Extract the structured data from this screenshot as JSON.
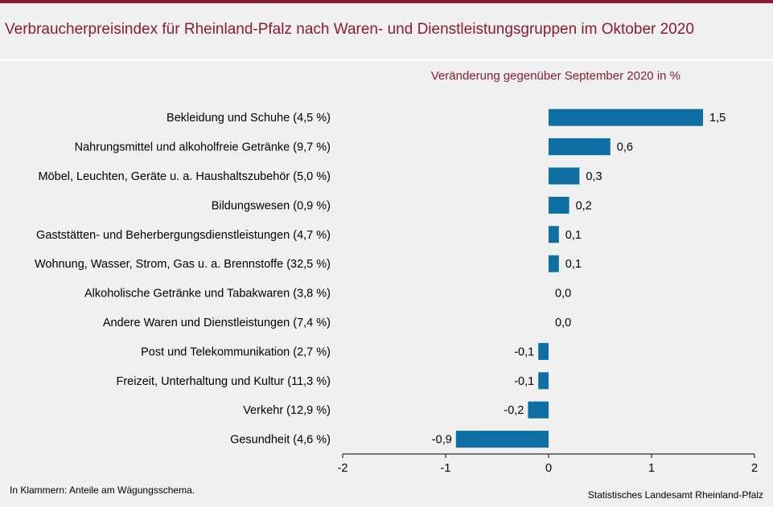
{
  "header": {
    "title": "Verbraucherpreisindex für Rheinland-Pfalz nach Waren- und Dienstleistungsgruppen im Oktober 2020"
  },
  "footer": {
    "note": "In Klammern: Anteile am Wägungsschema.",
    "source": "Statistisches Landesamt Rheinland-Pfalz"
  },
  "colors": {
    "bar": "#0e6fa5",
    "title": "#8a1c32"
  },
  "chart_data": {
    "type": "bar",
    "orientation": "horizontal",
    "subtitle": "Veränderung  gegenüber  September 2020 in %",
    "categories": [
      "Bekleidung und Schuhe (4,5 %)",
      "Nahrungsmittel und alkoholfreie Getränke (9,7 %)",
      "Möbel, Leuchten, Geräte u. a. Haushaltszubehör (5,0 %)",
      "Bildungswesen (0,9 %)",
      "Gaststätten- und Beherbergungsdienstleistungen (4,7 %)",
      "Wohnung, Wasser, Strom, Gas u. a. Brennstoffe (32,5 %)",
      "Alkoholische Getränke und Tabakwaren (3,8 %)",
      "Andere Waren und Dienstleistungen (7,4 %)",
      "Post und Telekommunikation (2,7 %)",
      "Freizeit, Unterhaltung und Kultur (11,3 %)",
      "Verkehr (12,9 %)",
      "Gesundheit (4,6 %)"
    ],
    "values": [
      1.5,
      0.6,
      0.3,
      0.2,
      0.1,
      0.1,
      0.0,
      0.0,
      -0.1,
      -0.1,
      -0.2,
      -0.9
    ],
    "value_labels": [
      "1,5",
      "0,6",
      "0,3",
      "0,2",
      "0,1",
      "0,1",
      "0,0",
      "0,0",
      "-0,1",
      "-0,1",
      "-0,2",
      "-0,9"
    ],
    "xlim": [
      -2,
      2
    ],
    "xticks": [
      -2,
      -1,
      0,
      1,
      2
    ],
    "xtick_labels": [
      "-2",
      "-1",
      "0",
      "1",
      "2"
    ],
    "grid": false,
    "legend": false
  }
}
